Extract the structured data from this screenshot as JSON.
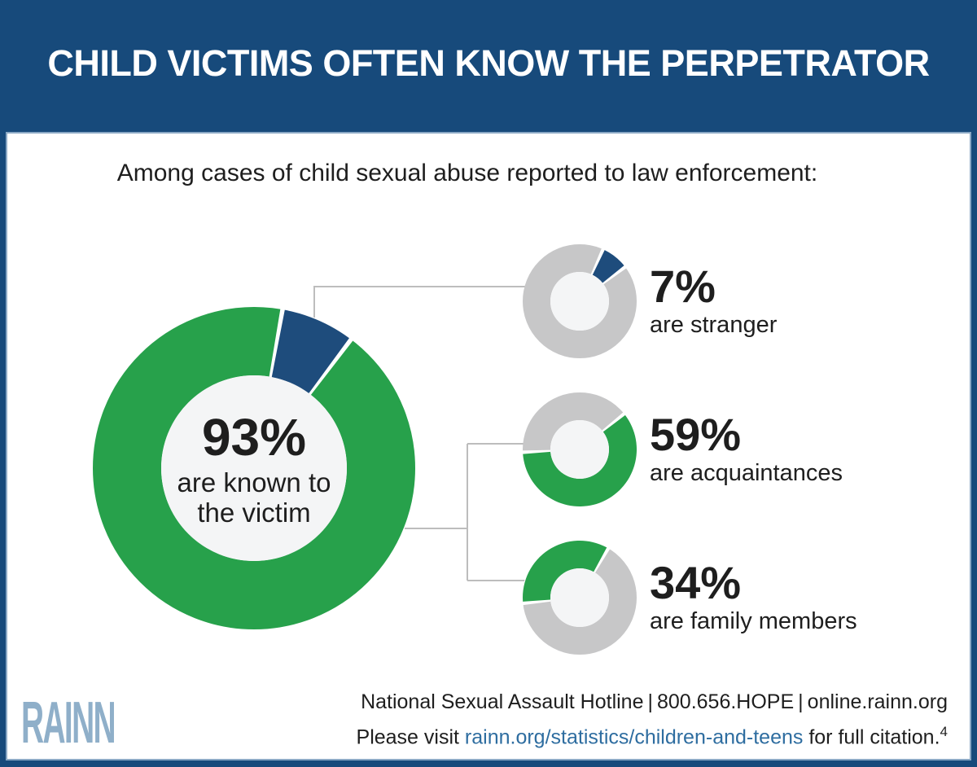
{
  "colors": {
    "navy": "#1E4C7C",
    "header_bg": "#174A7B",
    "green": "#27A14B",
    "gray_ring": "#C7C7C8",
    "inner_circle": "#F4F5F6",
    "connector": "#BDBDBD",
    "text_dark": "#1E1E1E",
    "link_blue": "#2E6DA0",
    "logo_blue": "#8FAFC9",
    "card_border": "#8BA9C5"
  },
  "header": {
    "title": "CHILD VICTIMS OFTEN KNOW THE PERPETRATOR"
  },
  "intro": "Among cases of child sexual abuse reported to law enforcement:",
  "chart_data": {
    "type": "pie",
    "title": "Child victims often know the perpetrator",
    "subtitle": "Among cases of child sexual abuse reported to law enforcement:",
    "units": "percent",
    "main_donut": {
      "center_value": "93%",
      "center_label_lines": [
        "are known to",
        "the victim"
      ],
      "slices": [
        {
          "label": "are known to the victim",
          "value": 93,
          "color_key": "green"
        },
        {
          "label": "are stranger",
          "value": 7,
          "color_key": "navy"
        }
      ],
      "highlight_start_angle": 11
    },
    "mini_donuts": [
      {
        "value": 7,
        "value_label": "7%",
        "label": "are stranger",
        "slice_color_key": "navy",
        "start_angle": 26
      },
      {
        "value": 59,
        "value_label": "59%",
        "label": "are acquaintances",
        "slice_color_key": "green",
        "start_angle": 53
      },
      {
        "value": 34,
        "value_label": "34%",
        "label": "are family members",
        "slice_color_key": "green",
        "start_angle": 266
      }
    ],
    "legend_position": "right",
    "grid": false
  },
  "footer": {
    "hotline": "National Sexual Assault Hotline | 800.656.HOPE | online.rainn.org",
    "citation_prefix": "Please visit ",
    "citation_link": "rainn.org/statistics/children-and-teens",
    "citation_suffix": " for full citation.",
    "citation_superscript": "4",
    "logo_text": "RAINN"
  }
}
